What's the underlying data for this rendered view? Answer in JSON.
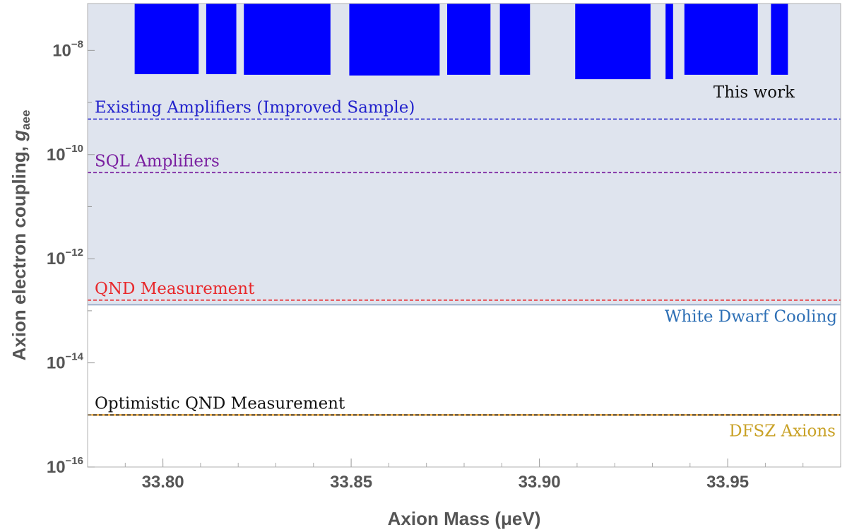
{
  "chart_data": {
    "type": "area",
    "xlabel": "Axion Mass (μeV)",
    "ylabel_main": "Axion electron coupling, ",
    "ylabel_symbol": "g",
    "ylabel_subscript": "aee",
    "xlim": [
      33.78,
      33.98
    ],
    "ylim_log10": [
      -16,
      -7.1
    ],
    "y_scale": "log",
    "x_ticks": [
      {
        "value": 33.8,
        "label": "33.80"
      },
      {
        "value": 33.85,
        "label": "33.85"
      },
      {
        "value": 33.9,
        "label": "33.90"
      },
      {
        "value": 33.95,
        "label": "33.95"
      }
    ],
    "y_ticks": [
      {
        "log10": -8,
        "base": "10",
        "exponent": "−8"
      },
      {
        "log10": -10,
        "base": "10",
        "exponent": "−10"
      },
      {
        "log10": -12,
        "base": "10",
        "exponent": "−12"
      },
      {
        "log10": -14,
        "base": "10",
        "exponent": "−14"
      },
      {
        "log10": -16,
        "base": "10",
        "exponent": "−16"
      }
    ],
    "excluded_region": {
      "label": "White Dwarf Cooling",
      "y": 1.3e-13,
      "fill": "#dfe4ee",
      "edge": "#8aa0c0",
      "label_color": "#2d6fb5"
    },
    "this_work": {
      "label": "This work",
      "color": "#0000ff",
      "label_color": "#111111",
      "bands": [
        {
          "x0": 33.7925,
          "x1": 33.8095,
          "y": 3.5e-09
        },
        {
          "x0": 33.8115,
          "x1": 33.8195,
          "y": 3.5e-09
        },
        {
          "x0": 33.8215,
          "x1": 33.8445,
          "y": 3.4e-09
        },
        {
          "x0": 33.8495,
          "x1": 33.8735,
          "y": 3.3e-09
        },
        {
          "x0": 33.8755,
          "x1": 33.887,
          "y": 3.4e-09
        },
        {
          "x0": 33.8895,
          "x1": 33.8975,
          "y": 3.4e-09
        },
        {
          "x0": 33.9095,
          "x1": 33.9295,
          "y": 2.8e-09
        },
        {
          "x0": 33.9335,
          "x1": 33.9355,
          "y": 2.8e-09
        },
        {
          "x0": 33.9385,
          "x1": 33.958,
          "y": 3.4e-09
        },
        {
          "x0": 33.9615,
          "x1": 33.966,
          "y": 3.4e-09
        }
      ]
    },
    "lines": [
      {
        "name": "Existing Amplifiers (Improved Sample)",
        "y": 4.8e-10,
        "color": "#2222cc"
      },
      {
        "name": "SQL Amplifiers",
        "y": 4.5e-11,
        "color": "#7a1fa0"
      },
      {
        "name": "QND Measurement",
        "y": 1.6e-13,
        "color": "#e8282b"
      },
      {
        "name": "Optimistic QND Measurement",
        "y": 1e-15,
        "color": "#111111"
      }
    ],
    "dfsz": {
      "name": "DFSZ Axions",
      "y": 1e-15,
      "color": "#f0a020",
      "label_color": "#c9a227"
    }
  }
}
